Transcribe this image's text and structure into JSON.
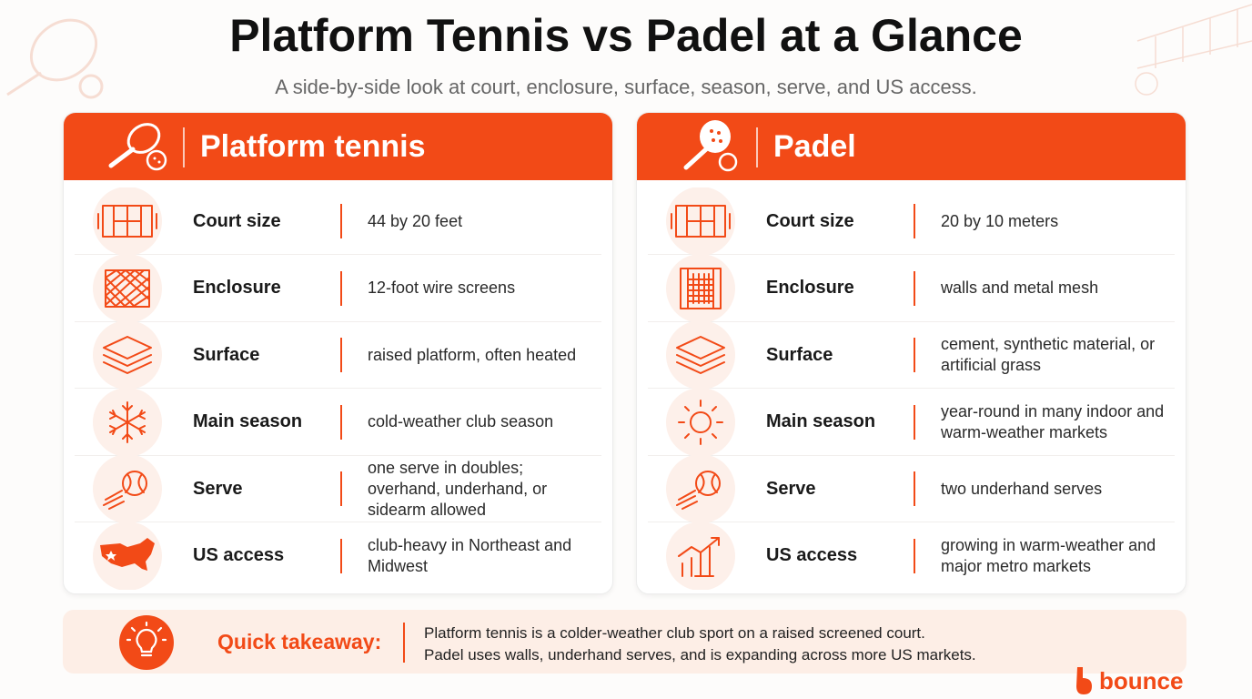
{
  "header": {
    "title": "Platform Tennis vs Padel at a Glance",
    "subtitle": "A side-by-side look at court, enclosure, surface, season, serve, and US access."
  },
  "cards": [
    {
      "title": "Platform tennis",
      "rows": [
        {
          "label": "Court size",
          "value": "44 by 20 feet"
        },
        {
          "label": "Enclosure",
          "value": "12-foot wire screens"
        },
        {
          "label": "Surface",
          "value": "raised platform, often heated"
        },
        {
          "label": "Main season",
          "value": "cold-weather club season"
        },
        {
          "label": "Serve",
          "value": "one serve in doubles; overhand, underhand, or sidearm allowed"
        },
        {
          "label": "US access",
          "value": "club-heavy in Northeast and Midwest"
        }
      ]
    },
    {
      "title": "Padel",
      "rows": [
        {
          "label": "Court size",
          "value": "20 by 10 meters"
        },
        {
          "label": "Enclosure",
          "value": "walls and metal mesh"
        },
        {
          "label": "Surface",
          "value": "cement, synthetic material, or artificial grass"
        },
        {
          "label": "Main season",
          "value": "year-round in many indoor and warm-weather markets"
        },
        {
          "label": "Serve",
          "value": "two underhand serves"
        },
        {
          "label": "US access",
          "value": "growing in warm-weather and major metro markets"
        }
      ]
    }
  ],
  "takeaway": {
    "label": "Quick takeaway:",
    "lines": [
      "Platform tennis is a colder-weather club sport on a raised screened court.",
      "Padel uses walls, underhand serves, and is expanding across more US markets."
    ]
  },
  "brand": "bounce"
}
